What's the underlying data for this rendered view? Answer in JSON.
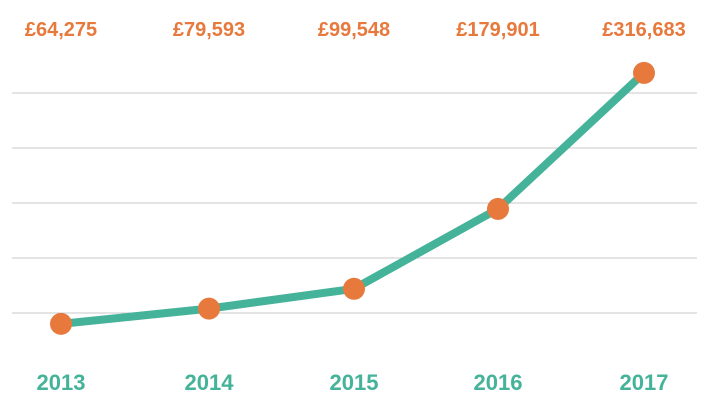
{
  "chart_data": {
    "type": "line",
    "title": "",
    "xlabel": "",
    "ylabel": "",
    "categories": [
      "2013",
      "2014",
      "2015",
      "2016",
      "2017"
    ],
    "values": [
      64275,
      79593,
      99548,
      179901,
      316683
    ],
    "data_labels": [
      "£64,275",
      "£79,593",
      "£99,548",
      "£179,901",
      "£316,683"
    ],
    "ylim": [
      25000,
      350000
    ],
    "grid": true,
    "legend": "none",
    "colors": {
      "line": "#45b29a",
      "marker": "#e8793d",
      "data_label": "#e8793d",
      "category_label": "#45b29a",
      "grid": "#c8c8c8"
    }
  }
}
